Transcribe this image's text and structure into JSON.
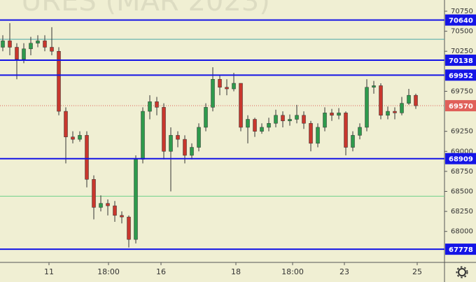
{
  "chart_data": {
    "type": "candlestick",
    "title": "URES (MAR 2023)",
    "open": [
      70300,
      70380,
      70300,
      70150,
      70280,
      70350,
      70380,
      70300,
      70250,
      69500,
      69180,
      69150,
      69200,
      68650,
      68300,
      68350,
      68320,
      68200,
      68180,
      67900,
      68900,
      69500,
      69620,
      69550,
      69000,
      69200,
      69150,
      68950,
      69050,
      69300,
      69550,
      69900,
      69800,
      69780,
      69850,
      69300,
      69400,
      69250,
      69300,
      69350,
      69450,
      69380,
      69400,
      69450,
      69350,
      69100,
      69300,
      69480,
      69450,
      69480,
      69050,
      69200,
      69300,
      69800,
      69820,
      69450,
      69500,
      69480,
      69600,
      69700
    ],
    "high": [
      70450,
      70600,
      70350,
      70350,
      70430,
      70450,
      70450,
      70550,
      70300,
      69550,
      69250,
      69250,
      69250,
      68700,
      68450,
      68400,
      68380,
      68250,
      68200,
      68950,
      69550,
      69700,
      69680,
      69600,
      69300,
      69250,
      69200,
      69100,
      69350,
      69600,
      70050,
      69950,
      69900,
      69980,
      69850,
      69450,
      69420,
      69350,
      69420,
      69520,
      69500,
      69460,
      69580,
      69500,
      69380,
      69350,
      69550,
      69530,
      69540,
      69500,
      69250,
      69350,
      69900,
      69880,
      69850,
      69560,
      69550,
      69680,
      69780,
      69720
    ],
    "low": [
      70250,
      70200,
      69900,
      70100,
      70200,
      70300,
      70250,
      70200,
      69450,
      68850,
      69100,
      69120,
      68550,
      68150,
      68250,
      68200,
      68120,
      68100,
      67800,
      67850,
      68850,
      69400,
      69450,
      68900,
      68500,
      69050,
      68850,
      68900,
      69000,
      69250,
      69500,
      69700,
      69700,
      69750,
      69250,
      69100,
      69180,
      69220,
      69250,
      69300,
      69300,
      69320,
      69350,
      69280,
      69000,
      69050,
      69250,
      69380,
      69400,
      68950,
      69000,
      69150,
      69250,
      69720,
      69400,
      69400,
      69400,
      69450,
      69580,
      69530
    ],
    "close": [
      70380,
      70300,
      70150,
      70280,
      70350,
      70380,
      70300,
      70250,
      69500,
      69180,
      69150,
      69200,
      68650,
      68300,
      68350,
      68320,
      68200,
      68180,
      67900,
      68900,
      69500,
      69620,
      69550,
      69000,
      69200,
      69150,
      68950,
      69050,
      69300,
      69550,
      69900,
      69800,
      69780,
      69850,
      69300,
      69400,
      69250,
      69300,
      69350,
      69450,
      69380,
      69400,
      69450,
      69350,
      69100,
      69300,
      69480,
      69450,
      69480,
      69050,
      69200,
      69300,
      69800,
      69820,
      69450,
      69500,
      69480,
      69600,
      69700,
      69570
    ],
    "up_color": "#2e9a4c",
    "down_color": "#c8372d",
    "ylim": [
      67613,
      70890
    ],
    "yticks": [
      70750,
      70500,
      70250,
      69750,
      69250,
      69000,
      68750,
      68500,
      68250,
      68000
    ],
    "xticks": [
      {
        "value": 6.6,
        "label": "11"
      },
      {
        "value": 15.1,
        "label": "18:00"
      },
      {
        "value": 22.6,
        "label": "16"
      },
      {
        "value": 33.3,
        "label": "18"
      },
      {
        "value": 41.4,
        "label": "18:00"
      },
      {
        "value": 48.8,
        "label": "23"
      },
      {
        "value": 59.2,
        "label": "25"
      }
    ],
    "levels": [
      70640,
      70138,
      69952,
      68909,
      67778
    ],
    "level_color": "#1414e6",
    "thin_levels": [
      {
        "value": 70400,
        "color": "#4aa7a7"
      },
      {
        "value": 68440,
        "color": "#6fd08a"
      }
    ],
    "last_price": 69570,
    "last_price_color": "#e0605a"
  }
}
